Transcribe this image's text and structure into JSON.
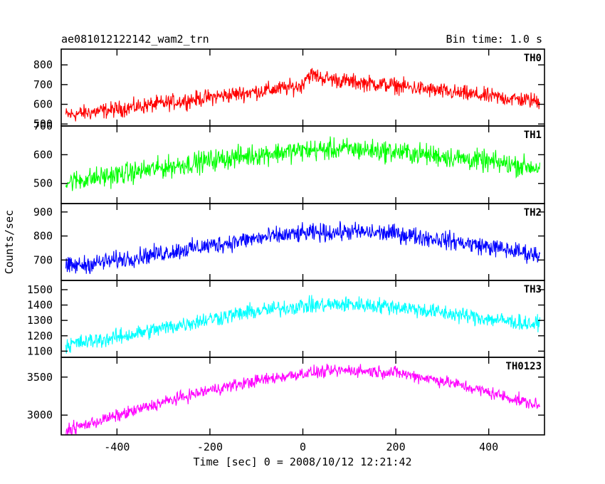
{
  "chart_data": {
    "type": "line",
    "title": "ae081012122142_wam2_trn",
    "bin_time": "Bin time: 1.0 s",
    "xlabel": "Time [sec] 0 = 2008/10/12 12:21:42",
    "ylabel": "Counts/sec",
    "xlim": [
      -520,
      520
    ],
    "x_ticks": [
      -400,
      -200,
      0,
      200,
      400
    ],
    "grid": false,
    "panels": [
      {
        "name": "TH0",
        "color": "#ff0000",
        "ylim": [
          490,
          880
        ],
        "y_ticks": [
          500,
          600,
          700,
          800
        ],
        "x": [
          -510,
          -400,
          -300,
          -200,
          -100,
          -10,
          0,
          5,
          20,
          40,
          100,
          200,
          300,
          400,
          510
        ],
        "mean": [
          545,
          575,
          605,
          635,
          665,
          690,
          700,
          740,
          750,
          735,
          715,
          695,
          665,
          640,
          615
        ],
        "noise": 35
      },
      {
        "name": "TH1",
        "color": "#00ff00",
        "ylim": [
          430,
          700
        ],
        "y_ticks": [
          500,
          600,
          700
        ],
        "x": [
          -510,
          -400,
          -300,
          -200,
          -100,
          0,
          100,
          200,
          300,
          400,
          510
        ],
        "mean": [
          505,
          530,
          555,
          580,
          600,
          615,
          620,
          610,
          595,
          575,
          555
        ],
        "noise": 32
      },
      {
        "name": "TH2",
        "color": "#0000ff",
        "ylim": [
          615,
          935
        ],
        "y_ticks": [
          700,
          800,
          900
        ],
        "x": [
          -510,
          -400,
          -300,
          -200,
          -100,
          0,
          100,
          200,
          300,
          400,
          510
        ],
        "mean": [
          670,
          700,
          730,
          760,
          790,
          810,
          818,
          810,
          785,
          755,
          720
        ],
        "noise": 32
      },
      {
        "name": "TH3",
        "color": "#00ffff",
        "ylim": [
          1060,
          1560
        ],
        "y_ticks": [
          1100,
          1200,
          1300,
          1400,
          1500
        ],
        "x": [
          -510,
          -400,
          -300,
          -200,
          -100,
          0,
          100,
          200,
          300,
          400,
          510
        ],
        "mean": [
          1140,
          1190,
          1250,
          1310,
          1360,
          1395,
          1405,
          1390,
          1350,
          1310,
          1270
        ],
        "noise": 45
      },
      {
        "name": "TH0123",
        "color": "#ff00ff",
        "ylim": [
          2740,
          3760
        ],
        "y_ticks": [
          3000,
          3500
        ],
        "x": [
          -510,
          -400,
          -300,
          -200,
          -100,
          0,
          100,
          200,
          300,
          400,
          510
        ],
        "mean": [
          2800,
          2990,
          3170,
          3330,
          3450,
          3550,
          3590,
          3560,
          3450,
          3300,
          3120
        ],
        "noise": 70
      }
    ]
  }
}
